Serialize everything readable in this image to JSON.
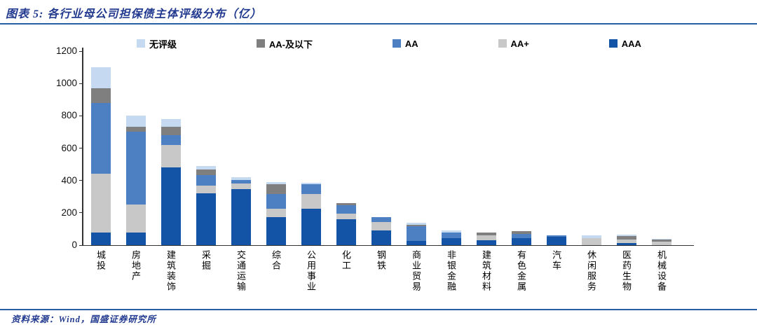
{
  "header": {
    "title": "图表 5:  各行业母公司担保债主体评级分布（亿）"
  },
  "footer": {
    "source": "资料来源：Wind，国盛证券研究所"
  },
  "colors": {
    "accent_text": "#223A8F",
    "rule_line": "#2A5CAA",
    "axis": "#333333"
  },
  "chart_data": {
    "type": "bar",
    "stacked": true,
    "title": "各行业母公司担保债主体评级分布（亿）",
    "xlabel": "",
    "ylabel": "",
    "ylim": [
      0,
      1200
    ],
    "yticks": [
      0,
      200,
      400,
      600,
      800,
      1000,
      1200
    ],
    "grid": false,
    "legend_position": "top",
    "legend_order": [
      "无评级",
      "AA-及以下",
      "AA",
      "AA+",
      "AAA"
    ],
    "categories": [
      "城投",
      "房地产",
      "建筑装饰",
      "采掘",
      "交通运输",
      "综合",
      "公用事业",
      "化工",
      "钢铁",
      "商业贸易",
      "非银金融",
      "建筑材料",
      "有色金属",
      "汽车",
      "休闲服务",
      "医药生物",
      "机械设备"
    ],
    "series": [
      {
        "name": "AAA",
        "color": "#1454A6",
        "values": [
          80,
          80,
          480,
          320,
          345,
          175,
          225,
          160,
          90,
          25,
          45,
          30,
          45,
          50,
          0,
          15,
          0
        ]
      },
      {
        "name": "AA+",
        "color": "#C8C8C8",
        "values": [
          360,
          170,
          140,
          50,
          35,
          50,
          90,
          35,
          55,
          0,
          0,
          30,
          0,
          0,
          45,
          20,
          20
        ]
      },
      {
        "name": "AA",
        "color": "#4C80C2",
        "values": [
          440,
          450,
          60,
          65,
          25,
          90,
          60,
          50,
          30,
          90,
          35,
          0,
          25,
          10,
          0,
          0,
          0
        ]
      },
      {
        "name": "AA-及以下",
        "color": "#7F7F7F",
        "values": [
          90,
          30,
          50,
          35,
          0,
          60,
          0,
          15,
          0,
          10,
          0,
          20,
          15,
          0,
          0,
          20,
          15
        ]
      },
      {
        "name": "无评级",
        "color": "#C5D9F0",
        "values": [
          130,
          70,
          50,
          20,
          15,
          15,
          10,
          0,
          0,
          15,
          10,
          0,
          0,
          0,
          15,
          10,
          5
        ]
      }
    ],
    "totals": [
      1100,
      800,
      780,
      490,
      420,
      390,
      385,
      260,
      175,
      140,
      90,
      80,
      85,
      60,
      60,
      65,
      40
    ]
  }
}
